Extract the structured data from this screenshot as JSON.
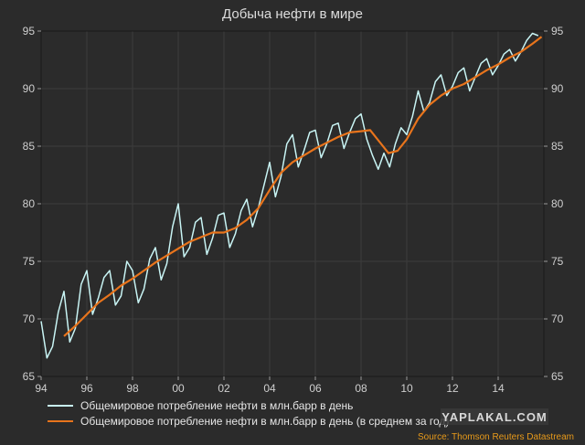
{
  "chart_data": {
    "type": "line",
    "title": "Добыча нефти в мире",
    "xlabel": "",
    "ylabel": "",
    "x_range": [
      1994.0,
      2016.0
    ],
    "ylim": [
      65,
      95
    ],
    "y_ticks": [
      65,
      70,
      75,
      80,
      85,
      90,
      95
    ],
    "x_ticks": [
      {
        "label": "94",
        "value": 1994
      },
      {
        "label": "96",
        "value": 1996
      },
      {
        "label": "98",
        "value": 1998
      },
      {
        "label": "00",
        "value": 2000
      },
      {
        "label": "02",
        "value": 2002
      },
      {
        "label": "04",
        "value": 2004
      },
      {
        "label": "06",
        "value": 2006
      },
      {
        "label": "08",
        "value": 2008
      },
      {
        "label": "10",
        "value": 2010
      },
      {
        "label": "12",
        "value": 2012
      },
      {
        "label": "14",
        "value": 2014
      }
    ],
    "grid": true,
    "legend_position": "bottom-left",
    "series": [
      {
        "name": "Общемировое потребление нефти в млн.барр в день",
        "color": "#c8f4f4",
        "x": [
          1994.0,
          1994.25,
          1994.5,
          1994.75,
          1995.0,
          1995.25,
          1995.5,
          1995.75,
          1996.0,
          1996.25,
          1996.5,
          1996.75,
          1997.0,
          1997.25,
          1997.5,
          1997.75,
          1998.0,
          1998.25,
          1998.5,
          1998.75,
          1999.0,
          1999.25,
          1999.5,
          1999.75,
          2000.0,
          2000.25,
          2000.5,
          2000.75,
          2001.0,
          2001.25,
          2001.5,
          2001.75,
          2002.0,
          2002.25,
          2002.5,
          2002.75,
          2003.0,
          2003.25,
          2003.5,
          2003.75,
          2004.0,
          2004.25,
          2004.5,
          2004.75,
          2005.0,
          2005.25,
          2005.5,
          2005.75,
          2006.0,
          2006.25,
          2006.5,
          2006.75,
          2007.0,
          2007.25,
          2007.5,
          2007.75,
          2008.0,
          2008.25,
          2008.5,
          2008.75,
          2009.0,
          2009.25,
          2009.5,
          2009.75,
          2010.0,
          2010.25,
          2010.5,
          2010.75,
          2011.0,
          2011.25,
          2011.5,
          2011.75,
          2012.0,
          2012.25,
          2012.5,
          2012.75,
          2013.0,
          2013.25,
          2013.5,
          2013.75,
          2014.0,
          2014.25,
          2014.5,
          2014.75,
          2015.0,
          2015.25,
          2015.5,
          2015.75
        ],
        "y": [
          69.8,
          66.6,
          67.6,
          70.6,
          72.4,
          68.0,
          69.2,
          73.0,
          74.2,
          70.4,
          71.8,
          73.6,
          74.2,
          71.2,
          72.0,
          75.0,
          74.2,
          71.4,
          72.6,
          75.2,
          76.2,
          73.4,
          74.8,
          78.0,
          80.0,
          75.4,
          76.2,
          78.4,
          78.8,
          75.6,
          77.0,
          79.0,
          79.2,
          76.2,
          77.4,
          79.4,
          80.4,
          78.0,
          79.6,
          81.6,
          83.6,
          80.6,
          82.4,
          85.2,
          86.0,
          83.2,
          84.6,
          86.2,
          86.4,
          84.0,
          85.2,
          86.8,
          87.0,
          84.8,
          86.2,
          87.4,
          87.8,
          85.6,
          84.2,
          83.0,
          84.4,
          83.2,
          85.2,
          86.6,
          86.0,
          87.6,
          89.8,
          88.0,
          88.8,
          90.6,
          91.2,
          89.4,
          90.2,
          91.4,
          91.8,
          89.8,
          91.0,
          92.2,
          92.6,
          91.2,
          92.0,
          93.0,
          93.4,
          92.4,
          93.2,
          94.2,
          94.8,
          94.6
        ]
      },
      {
        "name": "Общемировое потребление нефти в млн.барр в день (в среднем за год)",
        "color": "#e8741c",
        "x": [
          1995.0,
          1995.5,
          1996.0,
          1996.5,
          1997.0,
          1997.5,
          1998.0,
          1998.5,
          1999.0,
          1999.5,
          2000.0,
          2000.5,
          2001.0,
          2001.5,
          2002.0,
          2002.5,
          2003.0,
          2003.5,
          2004.0,
          2004.5,
          2005.0,
          2005.5,
          2006.0,
          2006.5,
          2007.0,
          2007.5,
          2008.0,
          2008.4,
          2008.8,
          2009.2,
          2009.6,
          2010.0,
          2010.5,
          2011.0,
          2011.5,
          2012.0,
          2012.5,
          2013.0,
          2013.5,
          2014.0,
          2014.5,
          2015.0,
          2015.5,
          2015.9
        ],
        "y": [
          68.5,
          69.4,
          70.4,
          71.4,
          72.1,
          72.9,
          73.5,
          74.2,
          74.9,
          75.5,
          76.1,
          76.7,
          77.1,
          77.5,
          77.5,
          77.9,
          78.6,
          79.6,
          81.2,
          82.7,
          83.6,
          84.2,
          84.8,
          85.3,
          85.8,
          86.2,
          86.3,
          86.4,
          85.4,
          84.4,
          84.6,
          85.6,
          87.4,
          88.6,
          89.4,
          90.0,
          90.4,
          91.0,
          91.6,
          92.1,
          92.7,
          93.2,
          93.9,
          94.5
        ]
      }
    ],
    "annotations": {
      "source": "Source: Thomson Reuters Datastream",
      "watermark": "YAPLAKAL.COM"
    }
  }
}
